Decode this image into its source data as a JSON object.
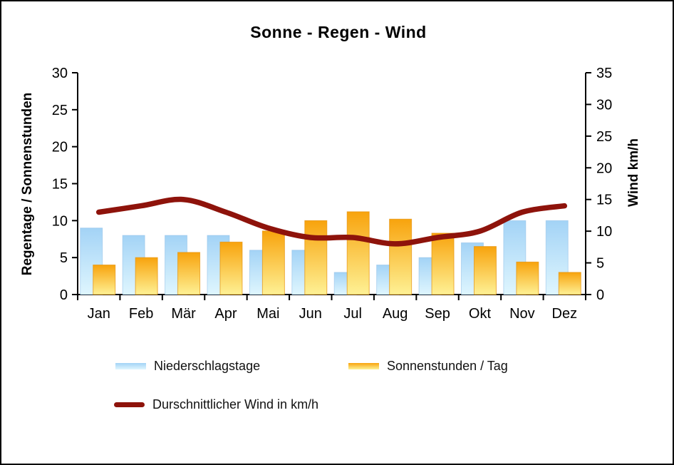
{
  "title": "Sonne - Regen - Wind",
  "colors": {
    "bar_blue_top": "#A3D3F6",
    "bar_blue_bottom": "#DFF6FE",
    "bar_blue_stroke": "#8FBFE8",
    "bar_orange_top": "#F8A30D",
    "bar_orange_bottom": "#FEF195",
    "bar_orange_stroke": "#E6920A",
    "wind_line": "#8E130B",
    "axis": "#000000",
    "text": "#000000"
  },
  "chart_data": {
    "type": "combo",
    "title": "Sonne - Regen - Wind",
    "categories": [
      "Jan",
      "Feb",
      "Mär",
      "Apr",
      "Mai",
      "Jun",
      "Jul",
      "Aug",
      "Sep",
      "Okt",
      "Nov",
      "Dez"
    ],
    "series": [
      {
        "name": "Niederschlagstage",
        "type": "bar",
        "axis": "left",
        "values": [
          9,
          8,
          8,
          8,
          6,
          6,
          3,
          4,
          5,
          7,
          10,
          10
        ]
      },
      {
        "name": "Sonnenstunden / Tag",
        "type": "bar",
        "axis": "left",
        "values": [
          4,
          5,
          5.7,
          7.1,
          8.6,
          10,
          11.2,
          10.2,
          8.3,
          6.5,
          4.4,
          3
        ]
      },
      {
        "name": "Durschnittlicher Wind in km/h",
        "type": "line",
        "axis": "right",
        "smooth": true,
        "values": [
          13,
          14,
          15,
          13,
          10.5,
          9,
          9,
          8,
          9,
          10,
          13,
          14
        ]
      }
    ],
    "left_axis": {
      "label": "Regentage / Sonnenstunden",
      "min": 0,
      "max": 30,
      "step": 5,
      "ticks": [
        "0",
        "5",
        "10",
        "15",
        "20",
        "25",
        "30"
      ]
    },
    "right_axis": {
      "label": "Wind km/h",
      "min": 0,
      "max": 35,
      "step": 5,
      "ticks": [
        "0",
        "5",
        "10",
        "15",
        "20",
        "25",
        "30",
        "35"
      ]
    },
    "grid": false,
    "legend_position": "bottom"
  },
  "legend": {
    "items": [
      {
        "label": "Niederschlagstage",
        "swatch": "blue-gradient-bar"
      },
      {
        "label": "Sonnenstunden / Tag",
        "swatch": "orange-gradient-bar"
      },
      {
        "label": "Durschnittlicher Wind in km/h",
        "swatch": "dark-red-line"
      }
    ]
  }
}
